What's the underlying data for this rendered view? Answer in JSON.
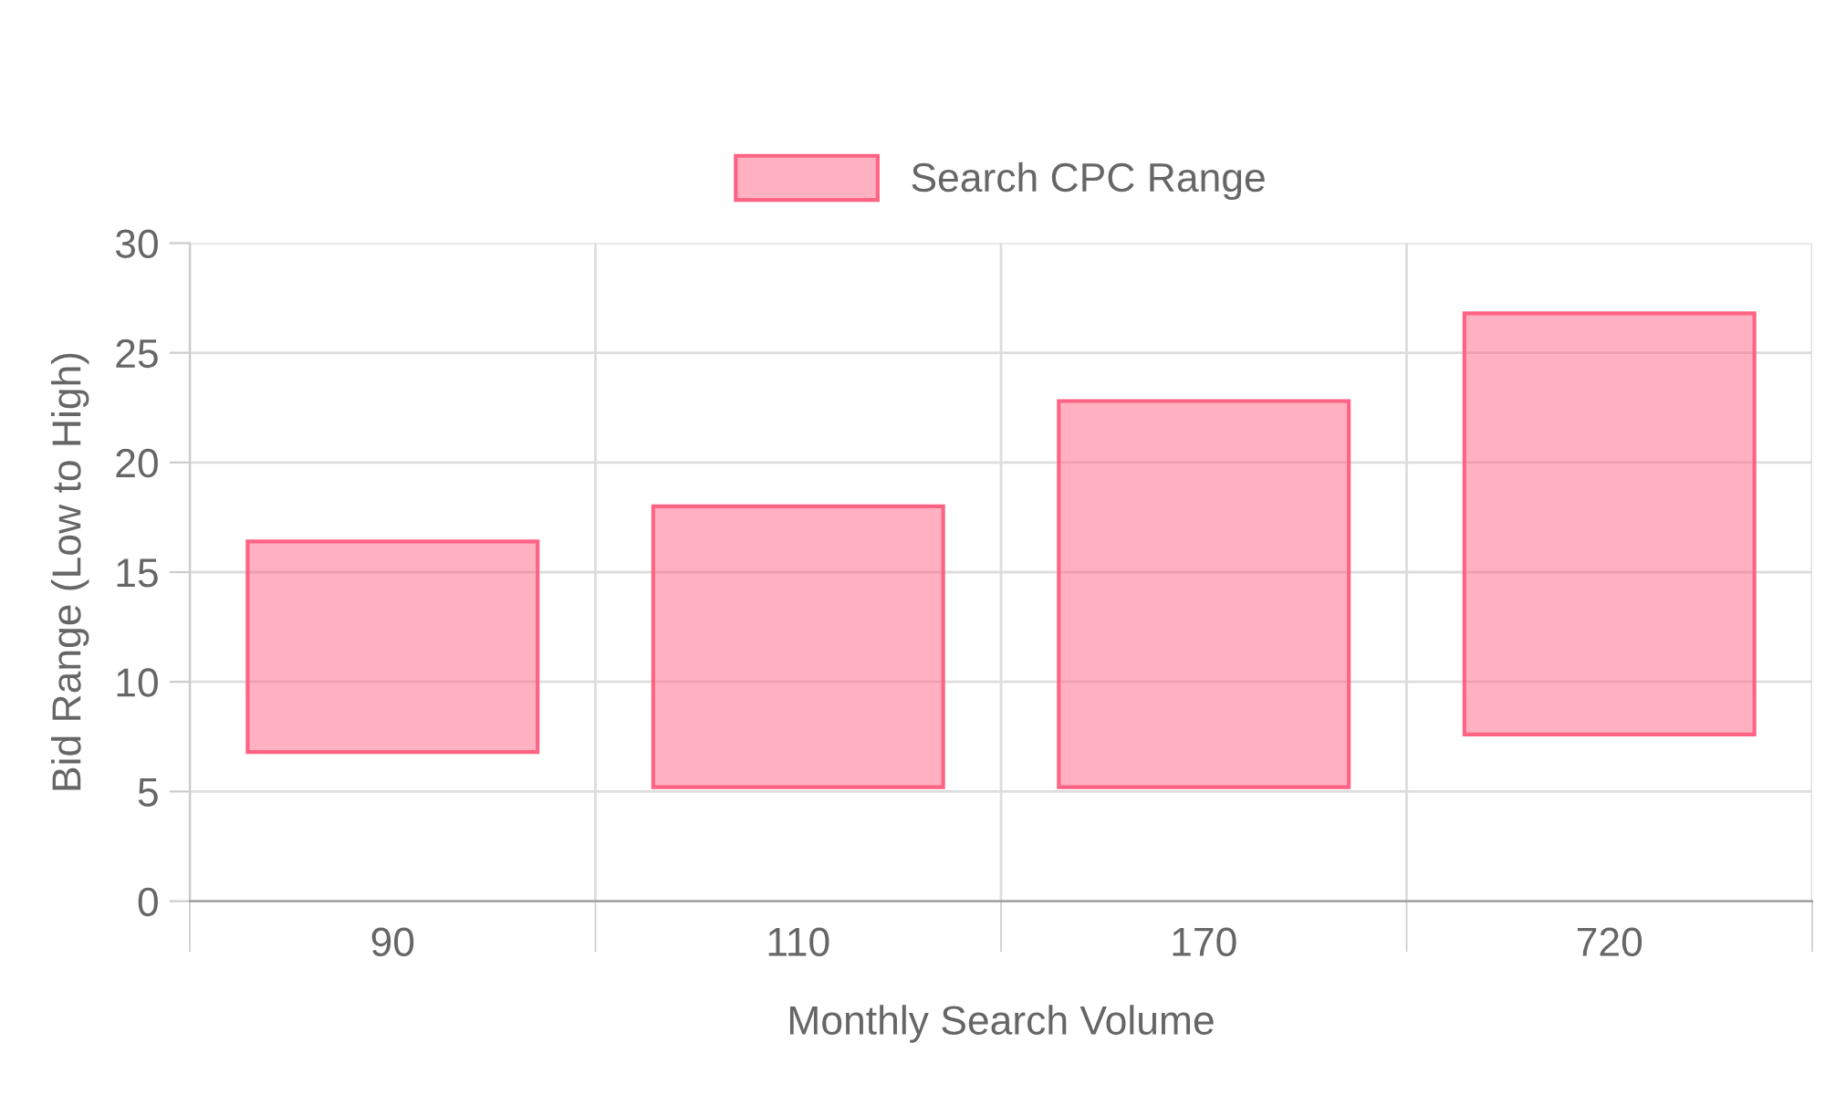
{
  "chart_data": {
    "type": "bar",
    "categories": [
      "90",
      "110",
      "170",
      "720"
    ],
    "series": [
      {
        "name": "Search CPC Range",
        "color": "#ff6384",
        "values": [
          9.6,
          12.8,
          17.6,
          19.2
        ],
        "base": [
          6.8,
          5.2,
          5.2,
          7.6
        ]
      }
    ],
    "xlabel": "Monthly Search Volume",
    "ylabel": "Bid Range (Low to High)",
    "ylim": [
      0,
      30
    ],
    "yticks": [
      0,
      5,
      10,
      15,
      20,
      25,
      30
    ],
    "grid": true,
    "legend": "top"
  }
}
